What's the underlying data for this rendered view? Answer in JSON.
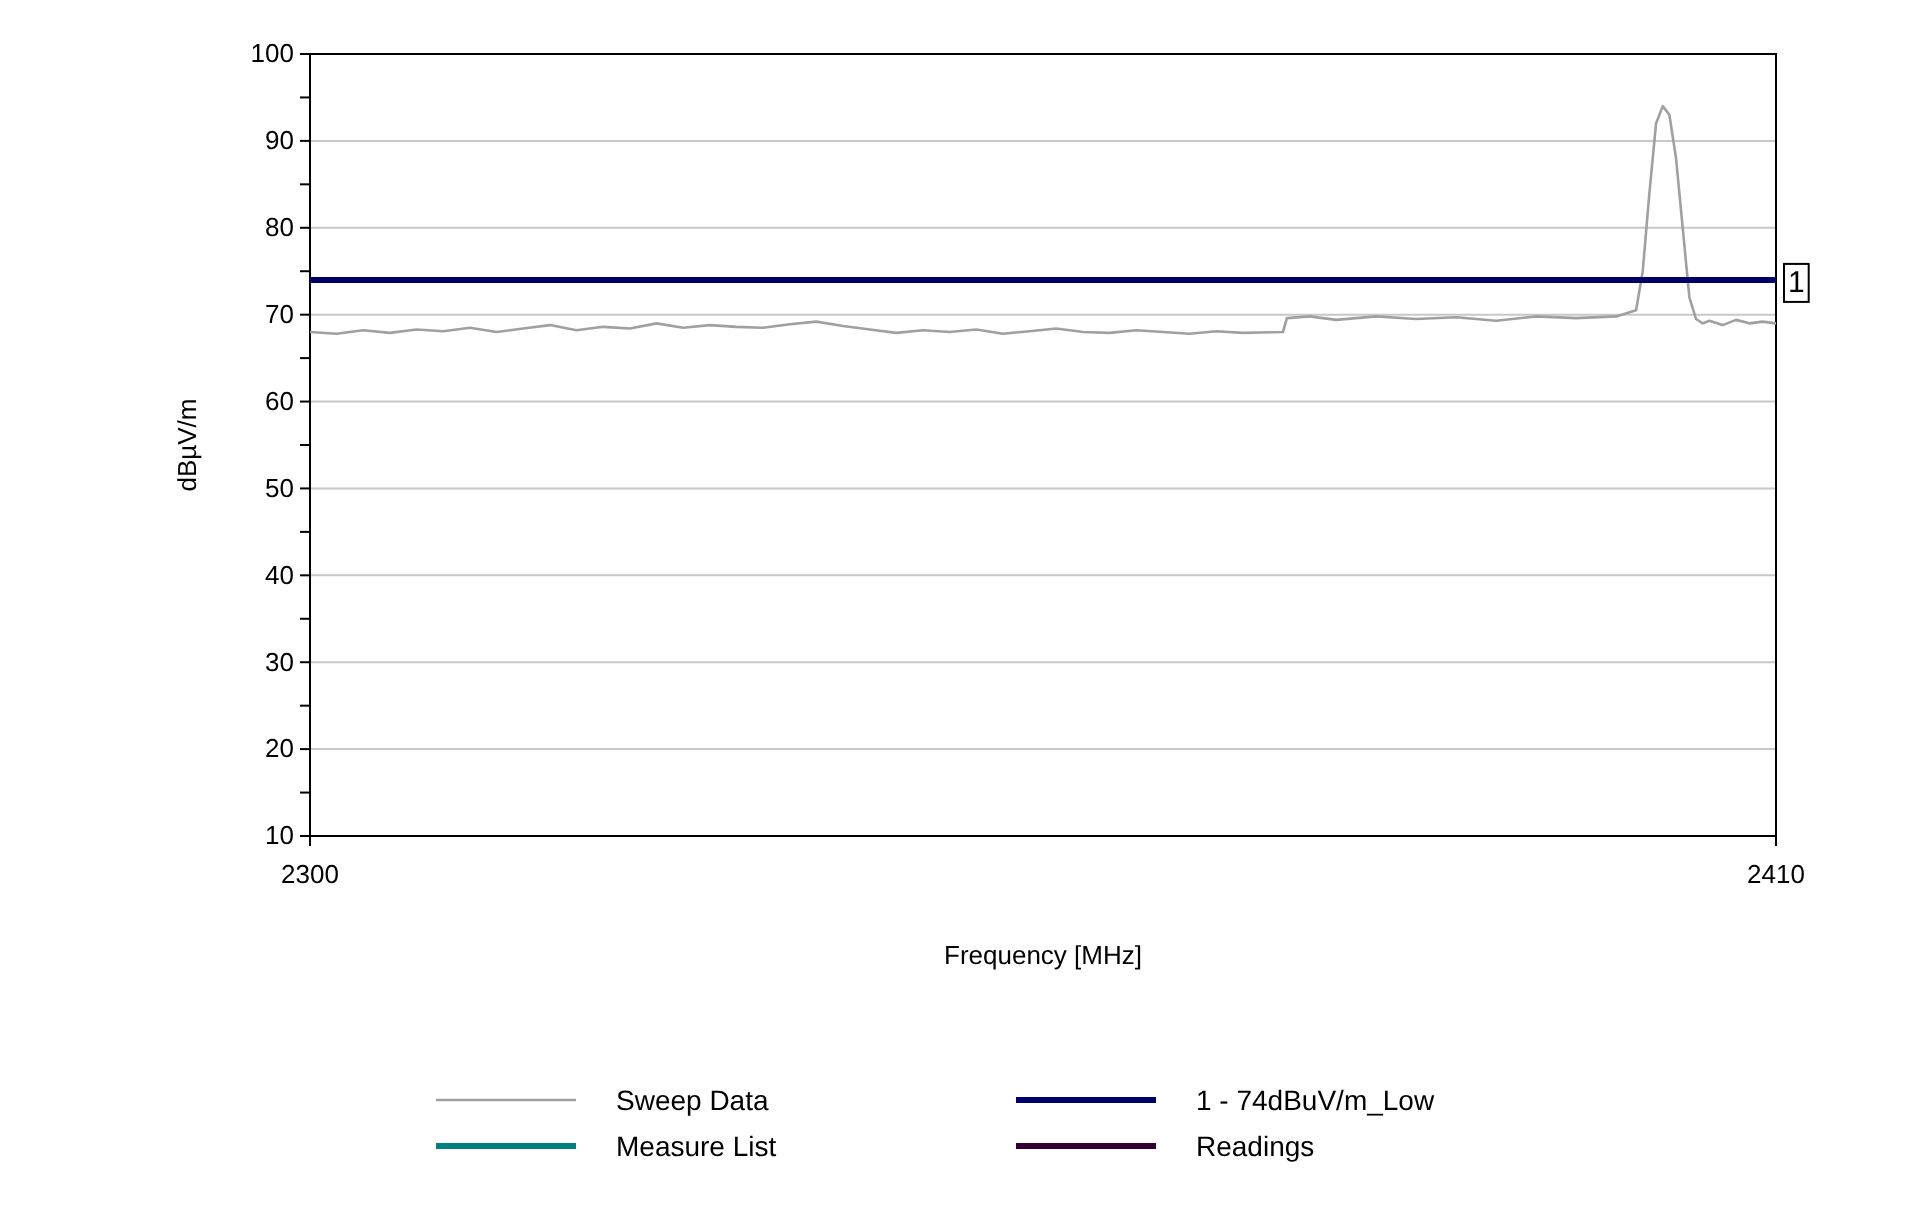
{
  "chart_data": {
    "type": "line",
    "xlabel": "Frequency [MHz]",
    "ylabel": "dBµV/m",
    "xlim": [
      2300,
      2410
    ],
    "xticks": [
      2300,
      2410
    ],
    "ylim": [
      10,
      100
    ],
    "yticks": [
      10,
      {
        "value": 15,
        "label": null
      },
      20,
      {
        "value": 25,
        "label": null
      },
      30,
      {
        "value": 35,
        "label": null
      },
      40,
      {
        "value": 45,
        "label": null
      },
      50,
      {
        "value": 55,
        "label": null
      },
      60,
      {
        "value": 65,
        "label": null
      },
      70,
      {
        "value": 75,
        "label": null
      },
      80,
      {
        "value": 85,
        "label": null
      },
      90,
      {
        "value": 95,
        "label": null
      },
      100
    ],
    "grid": "y",
    "legend": "bottom",
    "line_style": "solid",
    "marker": "none",
    "series": [
      {
        "name": "Sweep Data",
        "color": "#a0a0a0",
        "x": [
          2300,
          2302,
          2304,
          2306,
          2308,
          2310,
          2312,
          2314,
          2316,
          2318,
          2320,
          2322,
          2324,
          2326,
          2328,
          2330,
          2332,
          2334,
          2336,
          2338,
          2340,
          2342,
          2344,
          2346,
          2348,
          2350,
          2352,
          2354,
          2356,
          2358,
          2360,
          2362,
          2364,
          2366,
          2368,
          2370,
          2373,
          2373.3,
          2375,
          2377,
          2380,
          2383,
          2386,
          2389,
          2392,
          2395,
          2398,
          2399.5,
          2400,
          2400.5,
          2401,
          2401.5,
          2402,
          2402.5,
          2403,
          2403.5,
          2404,
          2404.5,
          2405,
          2406,
          2407,
          2408,
          2409,
          2410
        ],
        "values": [
          68,
          67.8,
          68.2,
          67.9,
          68.3,
          68.1,
          68.5,
          68,
          68.4,
          68.8,
          68.2,
          68.6,
          68.4,
          69,
          68.5,
          68.8,
          68.6,
          68.5,
          68.9,
          69.2,
          68.7,
          68.3,
          67.9,
          68.2,
          68,
          68.3,
          67.8,
          68.1,
          68.4,
          68,
          67.9,
          68.2,
          68,
          67.8,
          68.1,
          67.9,
          68,
          69.6,
          69.8,
          69.4,
          69.8,
          69.5,
          69.7,
          69.3,
          69.8,
          69.6,
          69.8,
          70.5,
          75,
          84,
          92,
          94,
          93,
          88,
          80,
          72,
          69.5,
          69,
          69.3,
          68.8,
          69.4,
          69,
          69.2,
          69
        ]
      },
      {
        "name": "1 - 74dBuV/m_Low",
        "color": "#000066",
        "x": [
          2300,
          2410
        ],
        "values": [
          74,
          74
        ]
      },
      {
        "name": "Measure List",
        "color": "#008080"
      },
      {
        "name": "Readings",
        "color": "#330033"
      }
    ],
    "annotations": [
      {
        "text": "1",
        "x": 2410,
        "y": 74
      }
    ]
  }
}
